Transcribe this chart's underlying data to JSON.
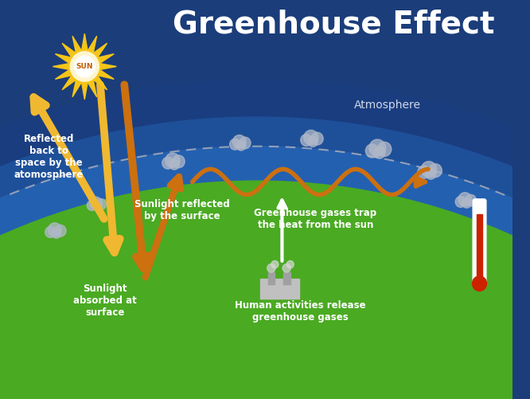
{
  "title": "Greenhouse Effect",
  "title_fontsize": 28,
  "title_color": "#ffffff",
  "title_fontweight": "bold",
  "bg_color": "#1b3d7a",
  "earth_color": "#4aaa22",
  "atm_color1": "#1a3d80",
  "atm_color2": "#1e5099",
  "atm_color3": "#2460b0",
  "sun_color": "#f5c518",
  "sun_glow_color": "#fff5cc",
  "sun_center_color": "#ffffff",
  "arrow_color_light": "#f0b830",
  "arrow_color_dark": "#cc7010",
  "arrow_white": "#ffffff",
  "text_color": "#ffffff",
  "atmosphere_label": "Atmosphere",
  "label_reflected_space": "Reflected\nback to\nspace by the\natomosphere",
  "label_absorbed": "Sunlight\nabsorbed at\nsurface",
  "label_reflected_surface": "Sunlight reflected\nby the surface",
  "label_greenhouse": "Greenhouse gases trap\nthe heat from the sun",
  "label_human": "Human activities release\ngreenhouse gases",
  "label_sun": "SUN",
  "cloud_color": "#b0b8c8",
  "dashed_line_color": "#a0a8b8",
  "therm_color": "#cc2200",
  "factory_color": "#c0c0c0",
  "label_fontsize": 8.5,
  "atm_fontsize": 10
}
